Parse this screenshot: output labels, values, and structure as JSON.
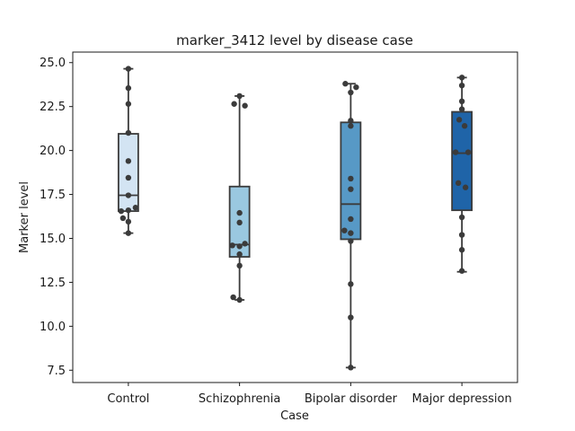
{
  "chart_data": {
    "type": "box",
    "title": "marker_3412 level by disease case",
    "xlabel": "Case",
    "ylabel": "Marker level",
    "ylim": [
      6.8,
      25.6
    ],
    "yticks": [
      "7.5",
      "10.0",
      "12.5",
      "15.0",
      "17.5",
      "20.0",
      "22.5",
      "25.0"
    ],
    "grid": false,
    "categories": [
      "Control",
      "Schizophrenia",
      "Bipolar disorder",
      "Major depression"
    ],
    "colors": [
      "#d3e4f3",
      "#9ac8e0",
      "#5799c6",
      "#1f64a8"
    ],
    "boxes": [
      {
        "category": "Control",
        "whisker_low": 15.3,
        "q1": 16.55,
        "median": 17.45,
        "q3": 20.95,
        "whisker_high": 24.65
      },
      {
        "category": "Schizophrenia",
        "whisker_low": 11.5,
        "q1": 13.95,
        "median": 14.65,
        "q3": 17.95,
        "whisker_high": 23.1
      },
      {
        "category": "Bipolar disorder",
        "whisker_low": 7.65,
        "q1": 14.95,
        "median": 16.95,
        "q3": 21.6,
        "whisker_high": 23.8
      },
      {
        "category": "Major depression",
        "whisker_low": 13.1,
        "q1": 16.6,
        "median": 19.85,
        "q3": 22.2,
        "whisker_high": 24.15
      }
    ],
    "points": [
      {
        "category": "Control",
        "values": [
          24.65,
          23.55,
          22.65,
          21.0,
          19.4,
          18.45,
          17.45,
          16.75,
          16.6,
          16.55,
          16.15,
          15.95,
          15.3
        ],
        "jitter": [
          0,
          0,
          0,
          0,
          0,
          0,
          0,
          8,
          0,
          -8,
          -6,
          0,
          0
        ]
      },
      {
        "category": "Schizophrenia",
        "values": [
          23.1,
          22.65,
          22.55,
          16.45,
          15.9,
          14.7,
          14.6,
          14.55,
          14.1,
          13.45,
          11.65,
          11.5
        ],
        "jitter": [
          0,
          -6,
          6,
          0,
          0,
          6,
          -8,
          0,
          0,
          0,
          -7,
          0
        ]
      },
      {
        "category": "Bipolar disorder",
        "values": [
          23.8,
          23.6,
          23.3,
          21.7,
          21.4,
          18.4,
          17.8,
          16.1,
          15.45,
          15.3,
          14.85,
          12.4,
          10.5,
          7.65
        ],
        "jitter": [
          -6,
          6,
          0,
          0,
          0,
          0,
          0,
          0,
          -7,
          0,
          0,
          0,
          0,
          0
        ]
      },
      {
        "category": "Major depression",
        "values": [
          24.15,
          23.7,
          22.8,
          22.35,
          21.75,
          21.4,
          19.9,
          19.9,
          18.15,
          17.9,
          16.2,
          15.2,
          14.35,
          13.15
        ],
        "jitter": [
          0,
          0,
          0,
          0,
          -3,
          3,
          -7,
          7,
          -4,
          4,
          0,
          0,
          0,
          0
        ]
      }
    ]
  }
}
